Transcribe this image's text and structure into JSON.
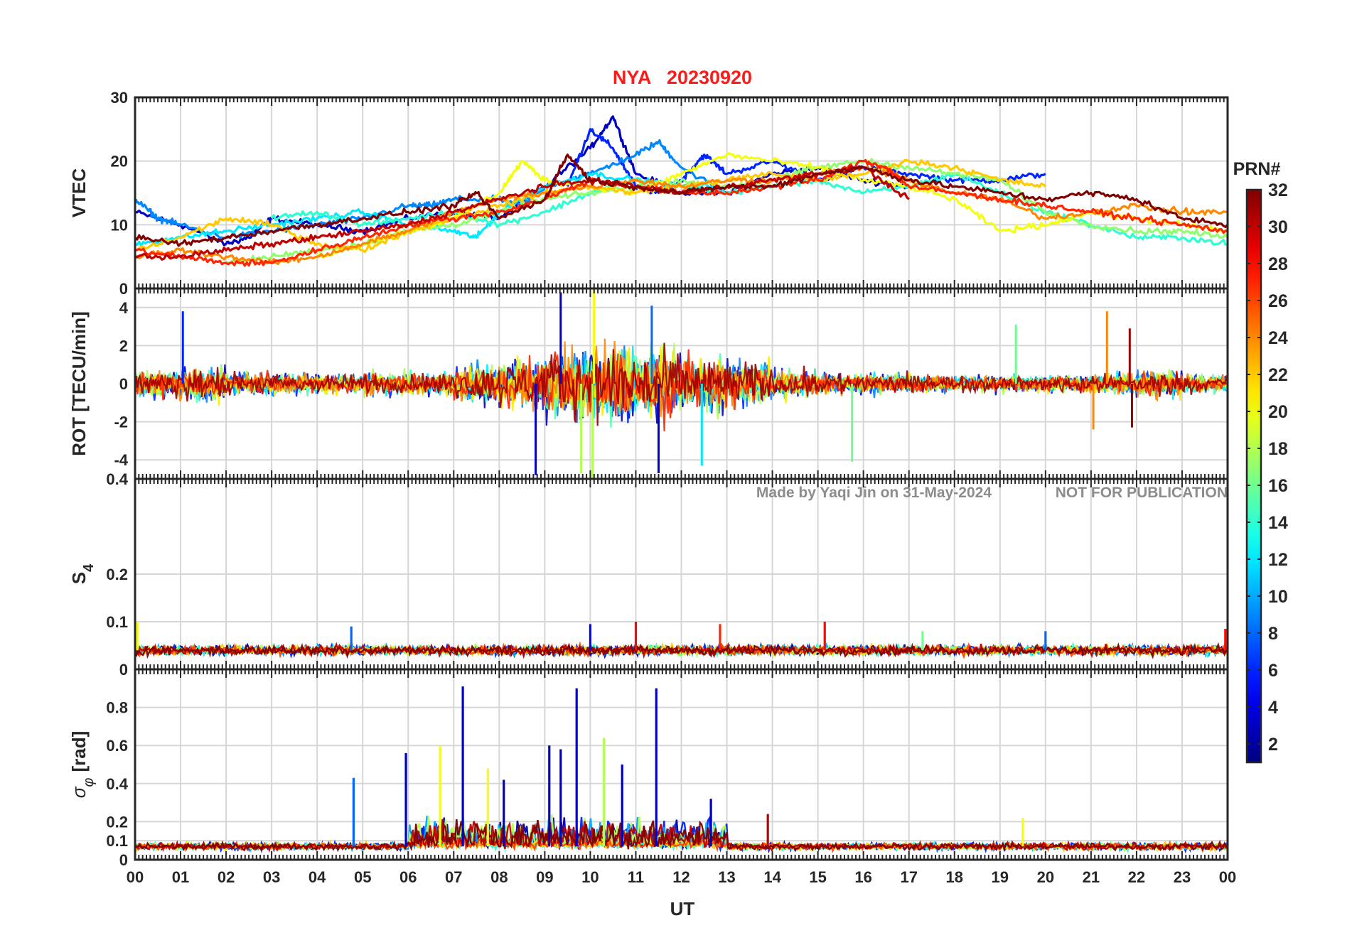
{
  "chart_data": {
    "type": "line",
    "title": "NYA   20230920",
    "station": "NYA",
    "date": "20230920",
    "xlabel": "UT",
    "x_tick_labels": [
      "00",
      "01",
      "02",
      "03",
      "04",
      "05",
      "06",
      "07",
      "08",
      "09",
      "10",
      "11",
      "12",
      "13",
      "14",
      "15",
      "16",
      "17",
      "18",
      "19",
      "20",
      "21",
      "22",
      "23",
      "00"
    ],
    "xlim_hours": [
      0,
      24
    ],
    "watermark": [
      "Made by Yaqi Jin on 31-May-2024",
      "NOT FOR PUBLICATION"
    ],
    "grid": true,
    "colorbar": {
      "label": "PRN#",
      "colormap": "jet",
      "range": [
        1,
        32
      ],
      "tick_labels": [
        "2",
        "4",
        "6",
        "8",
        "10",
        "12",
        "14",
        "16",
        "18",
        "20",
        "22",
        "24",
        "26",
        "28",
        "30",
        "32"
      ]
    },
    "panels": [
      {
        "ylabel": "VTEC",
        "ylim": [
          0,
          30
        ],
        "y_tick_labels": [
          "0",
          "10",
          "20",
          "30"
        ],
        "series": [
          {
            "prn": 3,
            "x": [
              0,
              1,
              2,
              2.5,
              3,
              4,
              5,
              6,
              7,
              8,
              9,
              10,
              10.5,
              11,
              12,
              13,
              14,
              15,
              16,
              17
            ],
            "y": [
              12,
              10,
              7,
              8,
              11,
              10,
              9,
              11,
              12,
              11,
              16,
              22,
              27,
              18,
              15,
              15,
              18,
              19,
              17,
              16
            ]
          },
          {
            "prn": 6,
            "x": [
              9.5,
              10,
              10.5,
              11,
              11.5,
              12,
              12.5,
              13,
              14,
              15,
              16,
              17,
              18,
              19,
              20
            ],
            "y": [
              16,
              25,
              22,
              16,
              15,
              17,
              21,
              18,
              20,
              17,
              19,
              18,
              17,
              17,
              18
            ]
          },
          {
            "prn": 9,
            "x": [
              0,
              0.5,
              1,
              2,
              3,
              4,
              5,
              6,
              6.5,
              7,
              8,
              8.5,
              9,
              10,
              11,
              11.5,
              12,
              13
            ],
            "y": [
              14,
              11,
              10,
              8,
              9,
              10,
              11,
              13,
              13,
              14,
              14,
              13,
              16,
              18,
              21,
              23,
              19,
              15
            ]
          },
          {
            "prn": 12,
            "x": [
              0,
              1,
              2,
              3,
              4,
              5,
              6,
              7,
              7.5,
              8,
              9,
              10,
              11,
              12,
              13
            ],
            "y": [
              7,
              8,
              9,
              10,
              11,
              12,
              10,
              9,
              8,
              12,
              16,
              18,
              17,
              16,
              16
            ]
          },
          {
            "prn": 14,
            "x": [
              3,
              4,
              5,
              6,
              7,
              8,
              9,
              10,
              11,
              12,
              13,
              14,
              15,
              16,
              17,
              18,
              19,
              20,
              21,
              22,
              23,
              24
            ],
            "y": [
              11,
              12,
              10,
              11,
              12,
              10,
              12,
              15,
              17,
              16,
              15,
              16,
              17,
              15,
              16,
              18,
              15,
              12,
              10,
              8,
              8,
              7
            ]
          },
          {
            "prn": 17,
            "x": [
              2,
              3,
              4,
              5,
              6,
              7,
              8,
              9,
              10,
              11,
              12,
              13,
              14,
              15,
              16,
              17,
              18,
              19,
              20,
              21,
              22,
              23,
              24
            ],
            "y": [
              4,
              5,
              6,
              7,
              9,
              10,
              12,
              14,
              15,
              16,
              17,
              16,
              17,
              19,
              20,
              19,
              18,
              17,
              12,
              10,
              9,
              9,
              8
            ]
          },
          {
            "prn": 20,
            "x": [
              4,
              5,
              6,
              7,
              8,
              8.5,
              9,
              10,
              11,
              12,
              13,
              14,
              15,
              16,
              17,
              18,
              19,
              20,
              21,
              22,
              23,
              24
            ],
            "y": [
              5,
              7,
              9,
              11,
              15,
              20,
              17,
              16,
              15,
              18,
              21,
              20,
              19,
              17,
              16,
              14,
              9,
              10,
              12,
              11,
              10,
              9
            ]
          },
          {
            "prn": 22,
            "x": [
              0,
              1,
              2,
              3,
              4,
              5,
              6,
              7,
              8,
              9,
              10,
              11,
              12,
              13,
              14,
              15,
              16,
              17,
              18,
              19,
              20
            ],
            "y": [
              6,
              8,
              11,
              10,
              7,
              6,
              9,
              11,
              13,
              15,
              16,
              15,
              16,
              17,
              18,
              17,
              18,
              20,
              19,
              17,
              16
            ]
          },
          {
            "prn": 24,
            "x": [
              0,
              1,
              2,
              3,
              4,
              5,
              6,
              7,
              8,
              9,
              10,
              11,
              12,
              13,
              14,
              15,
              16,
              17,
              18,
              19,
              20,
              21,
              22,
              23,
              24
            ],
            "y": [
              5,
              6,
              5,
              4,
              5,
              7,
              9,
              12,
              14,
              15,
              16,
              17,
              16,
              17,
              17,
              18,
              19,
              17,
              15,
              14,
              11,
              12,
              13,
              12,
              12
            ]
          },
          {
            "prn": 27,
            "x": [
              0,
              1,
              2,
              3,
              4,
              5,
              6,
              7,
              8,
              9,
              10,
              11,
              12,
              13,
              14,
              15,
              16,
              16.5,
              17,
              18,
              19,
              20,
              21,
              22,
              23,
              24
            ],
            "y": [
              6,
              5,
              4,
              4,
              6,
              8,
              10,
              11,
              12,
              14,
              17,
              16,
              15,
              15,
              16,
              17,
              20,
              19,
              16,
              15,
              14,
              13,
              12,
              11,
              10,
              9
            ]
          },
          {
            "prn": 30,
            "x": [
              0,
              1,
              2,
              3,
              4,
              5,
              6,
              7,
              8,
              9,
              10,
              11,
              12,
              13,
              14,
              15,
              16,
              17
            ],
            "y": [
              5,
              5,
              6,
              7,
              8,
              9,
              10,
              12,
              14,
              16,
              17,
              16,
              15,
              16,
              17,
              18,
              19,
              14
            ]
          },
          {
            "prn": 32,
            "x": [
              0,
              1,
              2,
              3,
              4,
              5,
              6,
              7,
              7.5,
              8,
              9,
              9.5,
              10,
              11,
              12,
              13,
              14,
              15,
              16,
              17,
              18,
              19,
              20,
              21,
              22,
              23,
              24
            ],
            "y": [
              8,
              7,
              8,
              9,
              10,
              11,
              12,
              13,
              15,
              11,
              14,
              21,
              17,
              16,
              15,
              16,
              16,
              18,
              19,
              17,
              16,
              15,
              14,
              15,
              14,
              11,
              10
            ]
          }
        ]
      },
      {
        "ylabel": "ROT [TECU/min]",
        "ylim": [
          -5,
          5
        ],
        "y_tick_labels": [
          "-4",
          "-2",
          "0",
          "2",
          "4"
        ],
        "envelope_amplitude_by_hour": [
          1.2,
          1.6,
          1.0,
          0.9,
          0.9,
          1.0,
          1.0,
          1.8,
          2.2,
          3.0,
          3.6,
          3.0,
          2.6,
          2.0,
          1.2,
          1.0,
          0.9,
          0.8,
          0.7,
          0.7,
          0.8,
          0.9,
          1.2,
          0.8
        ],
        "spikes": [
          {
            "x": 1.05,
            "y": 3.8
          },
          {
            "x": 8.8,
            "y": -4.8
          },
          {
            "x": 9.35,
            "y": 4.8
          },
          {
            "x": 9.8,
            "y": -4.7
          },
          {
            "x": 10.08,
            "y": 5.2
          },
          {
            "x": 10.05,
            "y": -5.0
          },
          {
            "x": 11.35,
            "y": 4.1
          },
          {
            "x": 11.5,
            "y": -4.7
          },
          {
            "x": 12.45,
            "y": -4.3
          },
          {
            "x": 15.75,
            "y": -4.1
          },
          {
            "x": 19.35,
            "y": 3.1
          },
          {
            "x": 21.35,
            "y": 3.8
          },
          {
            "x": 21.05,
            "y": -2.4
          },
          {
            "x": 21.85,
            "y": 2.9
          },
          {
            "x": 21.9,
            "y": -2.3
          }
        ]
      },
      {
        "ylabel": "S4",
        "ylim": [
          0,
          0.4
        ],
        "y_tick_labels": [
          "0",
          "0.1",
          "0.2",
          "0.4"
        ],
        "baseline": 0.04,
        "spikes": [
          {
            "x": 0.05,
            "y": 0.1
          },
          {
            "x": 4.75,
            "y": 0.09
          },
          {
            "x": 10.0,
            "y": 0.095
          },
          {
            "x": 11.0,
            "y": 0.1
          },
          {
            "x": 12.85,
            "y": 0.095
          },
          {
            "x": 15.15,
            "y": 0.1
          },
          {
            "x": 17.3,
            "y": 0.08
          },
          {
            "x": 20.0,
            "y": 0.08
          },
          {
            "x": 23.95,
            "y": 0.085
          }
        ]
      },
      {
        "ylabel": "σφ [rad]",
        "ylim": [
          0,
          1
        ],
        "y_tick_labels": [
          "0",
          "0.1",
          "0.2",
          "0.4",
          "0.6",
          "0.8"
        ],
        "baseline": 0.07,
        "spikes": [
          {
            "x": 4.8,
            "y": 0.43
          },
          {
            "x": 5.95,
            "y": 0.56
          },
          {
            "x": 6.7,
            "y": 0.6
          },
          {
            "x": 7.2,
            "y": 0.91
          },
          {
            "x": 7.75,
            "y": 0.48
          },
          {
            "x": 8.1,
            "y": 0.42
          },
          {
            "x": 9.1,
            "y": 0.6
          },
          {
            "x": 9.35,
            "y": 0.58
          },
          {
            "x": 9.7,
            "y": 0.9
          },
          {
            "x": 10.3,
            "y": 0.64
          },
          {
            "x": 10.7,
            "y": 0.5
          },
          {
            "x": 11.45,
            "y": 0.9
          },
          {
            "x": 12.65,
            "y": 0.32
          },
          {
            "x": 13.9,
            "y": 0.24
          },
          {
            "x": 19.5,
            "y": 0.22
          }
        ]
      }
    ]
  },
  "colors": {
    "title": "#ff1a1a",
    "text": "#262626",
    "grid": "#d6d6d6",
    "watermark": "#8c8c8c"
  }
}
